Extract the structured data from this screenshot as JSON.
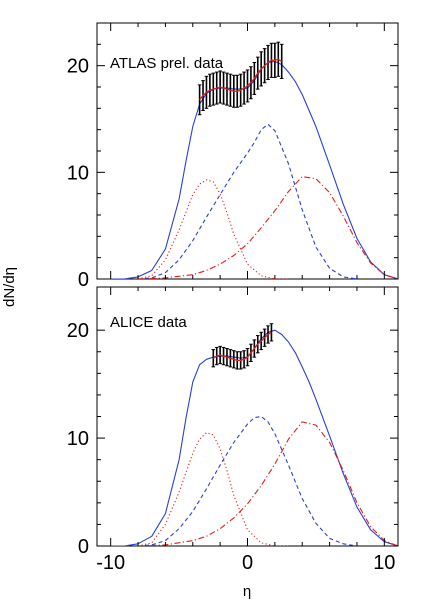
{
  "figure": {
    "ylabel": "dN/dη",
    "xlabel": "η"
  },
  "chart_data": [
    {
      "type": "line",
      "panel_label": "ATLAS prel. data",
      "xlim": [
        -11,
        11
      ],
      "ylim": [
        0,
        24
      ],
      "xticks": [
        -10,
        0,
        10
      ],
      "xtick_labels": [
        "-10",
        "0",
        "10"
      ],
      "yticks": [
        0,
        10,
        20
      ],
      "ytick_labels": [
        "0",
        "10",
        "20"
      ],
      "grid": false,
      "legend": "none",
      "colors": {
        "total": "#2a3ed8",
        "left": "#e0201a",
        "center": "#2a3ed8",
        "right": "#e0201a",
        "data": "#000000",
        "data_center": "#e0201a"
      },
      "series": [
        {
          "key": "total",
          "style": "solid",
          "color": "#2a3ed8",
          "x": [
            -10,
            -9,
            -8,
            -7,
            -6,
            -5,
            -4.5,
            -4,
            -3.5,
            -3,
            -2.5,
            -2,
            -1.5,
            -1,
            -0.5,
            0,
            0.5,
            1,
            1.5,
            2,
            2.5,
            3,
            3.5,
            4,
            4.5,
            5,
            6,
            7,
            8,
            9,
            10,
            11
          ],
          "y": [
            0,
            0,
            0.2,
            0.8,
            2.8,
            7.5,
            11,
            14.3,
            16.4,
            17.4,
            17.8,
            17.9,
            17.9,
            17.8,
            17.8,
            17.9,
            18.6,
            19.7,
            20.3,
            20.4,
            20.1,
            19.4,
            18.5,
            17.3,
            15.8,
            14.3,
            10.7,
            7,
            3.8,
            1.6,
            0.4,
            0
          ]
        },
        {
          "key": "left",
          "style": "dotted",
          "color": "#e0201a",
          "x": [
            -8,
            -7,
            -6,
            -5,
            -4,
            -3.5,
            -3,
            -2.5,
            -2,
            -1.5,
            -1,
            0,
            1,
            2,
            3
          ],
          "y": [
            0,
            0.3,
            1.8,
            4.6,
            7.9,
            8.9,
            9.3,
            9.1,
            8,
            6.2,
            4.2,
            1.4,
            0.3,
            0,
            0
          ]
        },
        {
          "key": "center",
          "style": "dashed",
          "color": "#2a3ed8",
          "x": [
            -8,
            -7,
            -6,
            -5,
            -4,
            -3,
            -2,
            -1,
            0,
            0.5,
            1,
            1.5,
            2,
            3,
            4,
            5,
            6,
            7,
            8
          ],
          "y": [
            0,
            0.1,
            0.6,
            1.8,
            3.6,
            5.8,
            7.9,
            10,
            11.8,
            12.8,
            14,
            14.5,
            13.9,
            10.8,
            6.5,
            3,
            1,
            0.2,
            0
          ]
        },
        {
          "key": "right",
          "style": "dashdot",
          "color": "#e0201a",
          "x": [
            -8,
            -6,
            -4,
            -3,
            -2,
            -1,
            0,
            1,
            2,
            3,
            4,
            5,
            6,
            7,
            8,
            9,
            10,
            11
          ],
          "y": [
            0,
            0.1,
            0.4,
            0.8,
            1.4,
            2.2,
            3.3,
            4.8,
            6.4,
            8.2,
            9.6,
            9.4,
            8.1,
            5.9,
            3.4,
            1.5,
            0.4,
            0
          ]
        },
        {
          "key": "data",
          "style": "errorbars",
          "color": "#000000",
          "x": [
            -3.5,
            -3.25,
            -3,
            -2.75,
            -2.5,
            -2.25,
            -2,
            -1.75,
            -1.5,
            -1.25,
            -1,
            -0.75,
            -0.5,
            -0.25,
            0,
            0.25,
            0.5,
            0.75,
            1,
            1.25,
            1.5,
            1.75,
            2,
            2.25,
            2.5
          ],
          "y": [
            16.8,
            17.2,
            17.5,
            17.7,
            17.8,
            17.9,
            18,
            17.9,
            17.8,
            17.7,
            17.6,
            17.6,
            17.7,
            17.9,
            18.1,
            18.4,
            18.8,
            19.3,
            19.7,
            20,
            20.3,
            20.5,
            20.5,
            20.6,
            20.4
          ],
          "err": [
            1.4,
            1.4,
            1.5,
            1.5,
            1.5,
            1.5,
            1.5,
            1.5,
            1.5,
            1.5,
            1.5,
            1.5,
            1.5,
            1.5,
            1.5,
            1.5,
            1.5,
            1.5,
            1.6,
            1.6,
            1.6,
            1.6,
            1.6,
            1.6,
            1.6
          ]
        }
      ]
    },
    {
      "type": "line",
      "panel_label": "ALICE data",
      "xlim": [
        -11,
        11
      ],
      "ylim": [
        0,
        24
      ],
      "xticks": [
        -10,
        0,
        10
      ],
      "xtick_labels": [
        "-10",
        "0",
        "10"
      ],
      "yticks": [
        0,
        10,
        20
      ],
      "ytick_labels": [
        "0",
        "10",
        "20"
      ],
      "grid": false,
      "legend": "none",
      "colors": {
        "total": "#2a3ed8",
        "left": "#e0201a",
        "center": "#2a3ed8",
        "right": "#e0201a",
        "data": "#000000",
        "data_center": "#e0201a"
      },
      "series": [
        {
          "key": "total",
          "style": "solid",
          "color": "#2a3ed8",
          "x": [
            -10,
            -9,
            -8,
            -7,
            -6,
            -5,
            -4.5,
            -4,
            -3.5,
            -3,
            -2.5,
            -2,
            -1.5,
            -1,
            -0.5,
            0,
            0.5,
            1,
            1.5,
            2,
            2.5,
            3,
            3.5,
            4,
            4.5,
            5,
            6,
            7,
            8,
            9,
            10,
            11
          ],
          "y": [
            0,
            0,
            0.2,
            0.9,
            3,
            8,
            11.8,
            15.2,
            16.8,
            17.3,
            17.5,
            17.6,
            17.6,
            17.5,
            17.4,
            17.5,
            18.3,
            19.2,
            19.8,
            20,
            19.6,
            18.9,
            17.9,
            16.6,
            15.2,
            13.6,
            10.2,
            6.7,
            3.6,
            1.5,
            0.4,
            0
          ]
        },
        {
          "key": "left",
          "style": "dotted",
          "color": "#e0201a",
          "x": [
            -8,
            -7,
            -6,
            -5,
            -4,
            -3.5,
            -3,
            -2.5,
            -2,
            -1.5,
            -1,
            0,
            1,
            2,
            3
          ],
          "y": [
            0,
            0.3,
            2,
            5,
            8.6,
            9.9,
            10.5,
            10.3,
            9,
            7,
            4.7,
            1.5,
            0.3,
            0,
            0
          ]
        },
        {
          "key": "center",
          "style": "dashed",
          "color": "#2a3ed8",
          "x": [
            -8,
            -7,
            -6,
            -5,
            -4,
            -3,
            -2,
            -1,
            0,
            0.5,
            1,
            1.5,
            2,
            3,
            4,
            5,
            6,
            7,
            8
          ],
          "y": [
            0,
            0.1,
            0.5,
            1.6,
            3.2,
            5.3,
            7.5,
            9.6,
            11.3,
            11.9,
            12,
            11.5,
            10.4,
            7.5,
            4.4,
            2.1,
            0.7,
            0.2,
            0
          ]
        },
        {
          "key": "right",
          "style": "dashdot",
          "color": "#e0201a",
          "x": [
            -8,
            -6,
            -4,
            -3,
            -2,
            -1,
            0,
            1,
            2,
            3,
            4,
            5,
            6,
            7,
            8,
            9,
            10,
            11
          ],
          "y": [
            0,
            0.1,
            0.5,
            0.9,
            1.6,
            2.6,
            3.9,
            5.6,
            7.6,
            9.9,
            11.5,
            11.2,
            9.6,
            7,
            4,
            1.8,
            0.5,
            0
          ]
        },
        {
          "key": "data",
          "style": "errorbars",
          "color": "#000000",
          "x": [
            -2.5,
            -2.25,
            -2,
            -1.75,
            -1.5,
            -1.25,
            -1,
            -0.75,
            -0.5,
            -0.25,
            0,
            0.25,
            0.5,
            0.75,
            1,
            1.25,
            1.5,
            1.75
          ],
          "y": [
            17.4,
            17.6,
            17.7,
            17.6,
            17.5,
            17.4,
            17.3,
            17.2,
            17.2,
            17.3,
            17.5,
            17.9,
            18.3,
            18.7,
            19,
            19.3,
            19.6,
            19.8
          ],
          "err": [
            0.8,
            0.8,
            0.8,
            0.8,
            0.8,
            0.8,
            0.8,
            0.8,
            0.8,
            0.8,
            0.8,
            0.8,
            0.8,
            0.8,
            0.8,
            0.8,
            0.8,
            0.8
          ]
        }
      ]
    }
  ]
}
